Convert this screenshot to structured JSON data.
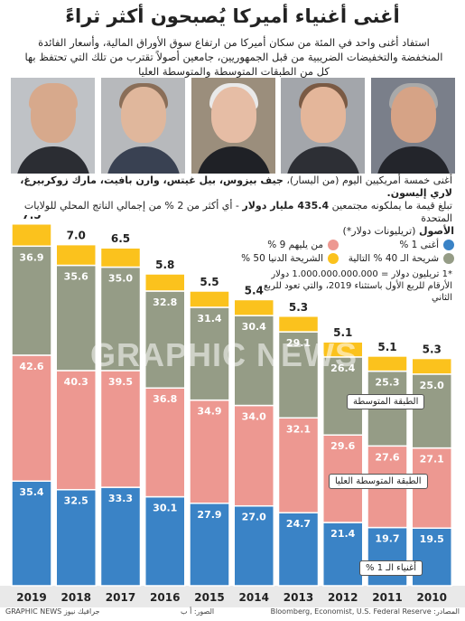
{
  "title": "أغنى أغنياء أميركا يُصبحون أكثر ثراءً",
  "intro": "استفاد أغنى واحد في المئة من سكان أميركا من ارتفاع سوق الأوراق المالية، وأسعار الفائدة المنخفضة والتخفيضات الضريبية من قبل الجمهوريين، جامعين أصولاً تقترب من تلك التي تحتفظ بها كل من الطبقات المتوسطة والمتوسطة العليا",
  "photos": [
    {
      "name": "jeff-bezos",
      "bg": "#bfc2c6",
      "skin": "#d7a98c",
      "hair": "#d7a98c",
      "suit": "#2b2d33"
    },
    {
      "name": "bill-gates",
      "bg": "#b7b9bc",
      "skin": "#e0b79c",
      "hair": "#8a6e58",
      "suit": "#394152"
    },
    {
      "name": "warren-buffett",
      "bg": "#9b8e7c",
      "skin": "#e6bda5",
      "hair": "#e9e9e9",
      "suit": "#1f2126"
    },
    {
      "name": "mark-zuckerberg",
      "bg": "#a3a6ab",
      "skin": "#e4b69a",
      "hair": "#7a5a44",
      "suit": "#2d2f35"
    },
    {
      "name": "larry-ellison",
      "bg": "#7a7f8a",
      "skin": "#d6a386",
      "hair": "#a9a9a9",
      "suit": "#23252b"
    }
  ],
  "names_line1_prefix": "أغنى خمسة أمريكيين اليوم (من اليسار)، ",
  "names_line1_bold": "جيف بيزوس، بيل غيتس، وارن بافيت، مارك زوكربيرغ، لاري إليسون.",
  "names_line2_prefix": "تبلغ قيمة ما يملكونه مجتمعين ",
  "names_line2_bold": "435.4 مليار دولار",
  "names_line2_suffix": " - أي أكثر من 2 % من إجمالي الناتج المحلي للولايات المتحدة",
  "legend": {
    "heading": "الأصول",
    "heading_suffix": " (تريليونات دولار*)",
    "items": [
      {
        "label": "أغنى 1 %",
        "color": "#3a83c6"
      },
      {
        "label": "من يليهم 9 %",
        "color": "#ed9891"
      },
      {
        "label": "شريحة الـ 40 % التالية",
        "color": "#959c86"
      },
      {
        "label": "الشريحة الدنيا 50 %",
        "color": "#fbc21d"
      }
    ]
  },
  "note": "*1 تريليون دولار = 1.000.000.000.000 دولار الأرقام للربع الأول باستثناء 2019، والتي تعود للربع الثاني",
  "band_labels": {
    "middle": "الطبقة المتوسطة",
    "upper_middle": "الطبقة المتوسطة العليا",
    "top1": "أغنياء الـ 1 %"
  },
  "chart_data": {
    "type": "bar",
    "stacked": true,
    "categories": [
      "2019",
      "2018",
      "2017",
      "2016",
      "2015",
      "2014",
      "2013",
      "2012",
      "2011",
      "2010"
    ],
    "series": [
      {
        "name": "أغنى 1 %",
        "color": "#3a83c6",
        "values": [
          35.4,
          32.5,
          33.3,
          30.1,
          27.9,
          27.0,
          24.7,
          21.4,
          19.7,
          19.5
        ]
      },
      {
        "name": "من يليهم 9 %",
        "color": "#ed9891",
        "values": [
          42.6,
          40.3,
          39.5,
          36.8,
          34.9,
          34.0,
          32.1,
          29.6,
          27.6,
          27.1
        ]
      },
      {
        "name": "شريحة الـ 40 % التالية",
        "color": "#959c86",
        "values": [
          36.9,
          35.6,
          35.0,
          32.8,
          31.4,
          30.4,
          29.1,
          26.4,
          25.3,
          25.0
        ]
      },
      {
        "name": "الشريحة الدنيا 50 %",
        "color": "#fbc21d",
        "values": [
          7.5,
          7.0,
          6.5,
          5.8,
          5.5,
          5.4,
          5.3,
          5.1,
          5.1,
          5.3
        ]
      }
    ]
  },
  "footer": {
    "left": "GRAPHIC NEWS جرافيك نيوز",
    "mid": "الصور: أ ب",
    "right": "المصادر: Bloomberg, Economist, U.S. Federal Reserve"
  }
}
